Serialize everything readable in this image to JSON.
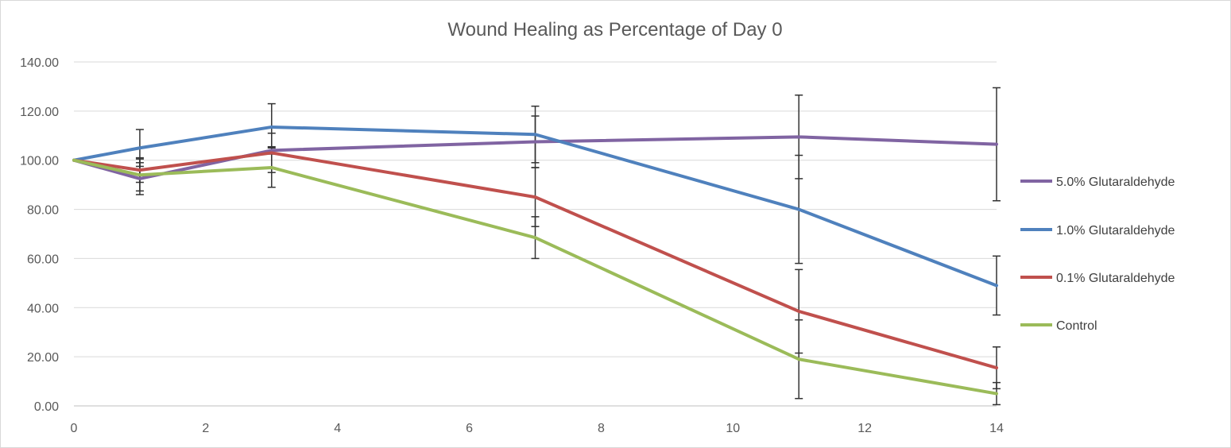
{
  "chart_data": {
    "type": "line",
    "title": "Wound Healing as Percentage of Day 0",
    "xlabel": "",
    "ylabel": "",
    "xlim": [
      0,
      14
    ],
    "ylim": [
      0,
      140
    ],
    "x_ticks": [
      "0",
      "2",
      "4",
      "6",
      "8",
      "10",
      "12",
      "14"
    ],
    "y_ticks": [
      "0.00",
      "20.00",
      "40.00",
      "60.00",
      "80.00",
      "100.00",
      "120.00",
      "140.00"
    ],
    "grid": "horizontal",
    "legend_position": "right",
    "x": [
      0,
      1,
      3,
      7,
      11,
      14
    ],
    "series": [
      {
        "name": "5.0% Glutaraldehyde",
        "color": "#8064a2",
        "values": [
          100,
          92.5,
          104,
          107.5,
          109.5,
          106.5
        ],
        "error": [
          0,
          6.5,
          1.5,
          10.5,
          17,
          23
        ]
      },
      {
        "name": "1.0% Glutaraldehyde",
        "color": "#4f81bd",
        "values": [
          100,
          105,
          113.5,
          110.5,
          80,
          49
        ],
        "error": [
          0,
          7.5,
          9.5,
          11.5,
          22,
          12
        ]
      },
      {
        "name": "0.1% Glutaraldehyde",
        "color": "#c0504d",
        "values": [
          100,
          96,
          103,
          85,
          38.5,
          15.5
        ],
        "error": [
          0,
          5,
          8,
          12,
          17,
          8.5
        ]
      },
      {
        "name": "Control",
        "color": "#9bbb59",
        "values": [
          100,
          94,
          97,
          68.5,
          19,
          5
        ],
        "error": [
          0,
          6.5,
          8,
          8.5,
          16,
          4.5
        ]
      }
    ]
  }
}
